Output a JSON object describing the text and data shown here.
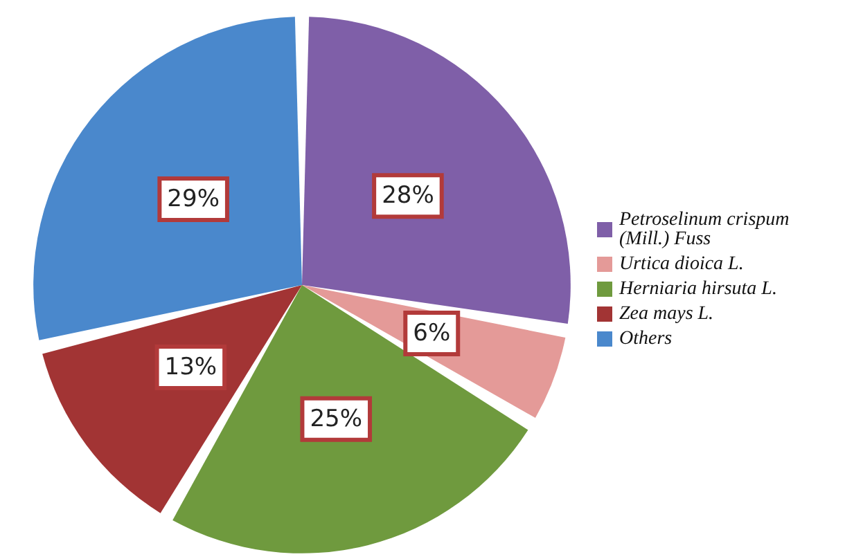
{
  "chart_data": {
    "type": "pie",
    "categories": [
      "Petroselinum crispum (Mill.) Fuss",
      "Urtica dioica L.",
      "Herniaria hirsuta L.",
      "Zea mays L.",
      "Others"
    ],
    "values": [
      28,
      6,
      25,
      13,
      29
    ],
    "colors": [
      "#7f5fa8",
      "#e49a98",
      "#6f9a3e",
      "#a23434",
      "#4a88cc"
    ],
    "value_labels": [
      "28%",
      "6%",
      "25%",
      "13%",
      "29%"
    ],
    "legend": "right"
  }
}
